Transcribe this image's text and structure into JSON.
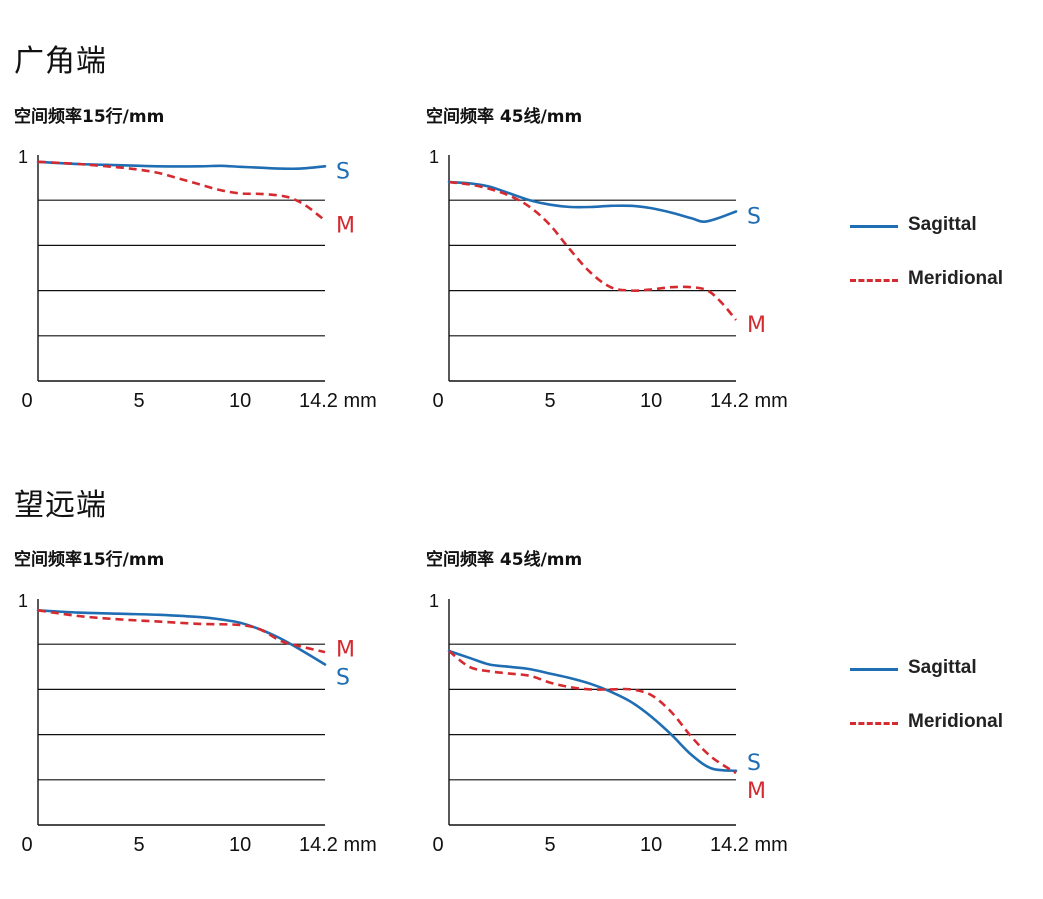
{
  "sections": [
    {
      "title": "广角端"
    },
    {
      "title": "望远端"
    }
  ],
  "legend": {
    "sagittal": "Sagittal",
    "meridional": "Meridional"
  },
  "colors": {
    "sagittal": "#1f6db3",
    "meridional": "#d42a30"
  },
  "chart_data": [
    {
      "type": "line",
      "title": "空间频率15行/mm",
      "xlabel": "mm",
      "x_ticks": [
        "0",
        "5",
        "10",
        "14.2 mm"
      ],
      "y_ticks": [
        "1"
      ],
      "xlim": [
        0,
        14.2
      ],
      "ylim": [
        0,
        1
      ],
      "gridlines": [
        0.2,
        0.4,
        0.6,
        0.8
      ],
      "series": [
        {
          "name": "S",
          "x": [
            0,
            2,
            4,
            6,
            8,
            9,
            10,
            11,
            12,
            13,
            14.2
          ],
          "y": [
            0.97,
            0.96,
            0.955,
            0.95,
            0.95,
            0.952,
            0.948,
            0.944,
            0.94,
            0.94,
            0.95
          ]
        },
        {
          "name": "M",
          "x": [
            0,
            2,
            4,
            5,
            6,
            7,
            8,
            9,
            10,
            11,
            12,
            12.5,
            13,
            13.5,
            14.2
          ],
          "y": [
            0.97,
            0.96,
            0.945,
            0.935,
            0.92,
            0.895,
            0.87,
            0.845,
            0.83,
            0.828,
            0.82,
            0.81,
            0.79,
            0.76,
            0.71
          ]
        }
      ]
    },
    {
      "type": "line",
      "title": "空间频率 45线/mm",
      "xlabel": "mm",
      "x_ticks": [
        "0",
        "5",
        "10",
        "14.2 mm"
      ],
      "y_ticks": [
        "1"
      ],
      "xlim": [
        0,
        14.2
      ],
      "ylim": [
        0,
        1
      ],
      "gridlines": [
        0.2,
        0.4,
        0.6,
        0.8
      ],
      "series": [
        {
          "name": "S",
          "x": [
            0,
            1,
            2,
            3,
            4,
            5,
            6,
            7,
            8,
            9,
            10,
            11,
            12,
            12.6,
            13.3,
            14.2
          ],
          "y": [
            0.88,
            0.875,
            0.86,
            0.83,
            0.8,
            0.78,
            0.77,
            0.77,
            0.775,
            0.775,
            0.765,
            0.745,
            0.72,
            0.705,
            0.72,
            0.75
          ]
        },
        {
          "name": "M",
          "x": [
            0,
            1,
            2,
            3,
            4,
            5,
            6,
            7,
            8,
            9,
            10,
            11,
            12,
            12.8,
            13.5,
            14.2
          ],
          "y": [
            0.88,
            0.87,
            0.85,
            0.82,
            0.77,
            0.69,
            0.58,
            0.48,
            0.415,
            0.4,
            0.405,
            0.415,
            0.415,
            0.4,
            0.345,
            0.27
          ]
        }
      ]
    },
    {
      "type": "line",
      "title": "空间频率15行/mm",
      "xlabel": "mm",
      "x_ticks": [
        "0",
        "5",
        "10",
        "14.2 mm"
      ],
      "y_ticks": [
        "1"
      ],
      "xlim": [
        0,
        14.2
      ],
      "ylim": [
        0,
        1
      ],
      "gridlines": [
        0.2,
        0.4,
        0.6,
        0.8
      ],
      "series": [
        {
          "name": "S",
          "x": [
            0,
            2,
            4,
            6,
            8,
            9,
            10,
            11,
            12,
            13,
            14.2
          ],
          "y": [
            0.95,
            0.94,
            0.935,
            0.93,
            0.92,
            0.91,
            0.895,
            0.865,
            0.825,
            0.775,
            0.71
          ]
        },
        {
          "name": "M",
          "x": [
            0,
            2,
            4,
            6,
            8,
            10,
            11,
            12,
            13,
            14.2
          ],
          "y": [
            0.95,
            0.925,
            0.91,
            0.9,
            0.89,
            0.885,
            0.865,
            0.815,
            0.79,
            0.765
          ]
        }
      ]
    },
    {
      "type": "line",
      "title": "空间频率 45线/mm",
      "xlabel": "mm",
      "x_ticks": [
        "0",
        "5",
        "10",
        "14.2 mm"
      ],
      "y_ticks": [
        "1"
      ],
      "xlim": [
        0,
        14.2
      ],
      "ylim": [
        0,
        1
      ],
      "gridlines": [
        0.2,
        0.4,
        0.6,
        0.8
      ],
      "series": [
        {
          "name": "S",
          "x": [
            0,
            1,
            2,
            3,
            4,
            5,
            6,
            7,
            8,
            9,
            10,
            11,
            12,
            13,
            14.2
          ],
          "y": [
            0.77,
            0.74,
            0.71,
            0.7,
            0.69,
            0.67,
            0.65,
            0.625,
            0.59,
            0.545,
            0.48,
            0.4,
            0.31,
            0.25,
            0.24
          ]
        },
        {
          "name": "M",
          "x": [
            0,
            1,
            2,
            3,
            4,
            5,
            6,
            7,
            8,
            9,
            10,
            11,
            12,
            13,
            14.2
          ],
          "y": [
            0.77,
            0.7,
            0.68,
            0.67,
            0.66,
            0.63,
            0.61,
            0.6,
            0.6,
            0.6,
            0.575,
            0.5,
            0.39,
            0.3,
            0.23
          ]
        }
      ]
    }
  ]
}
